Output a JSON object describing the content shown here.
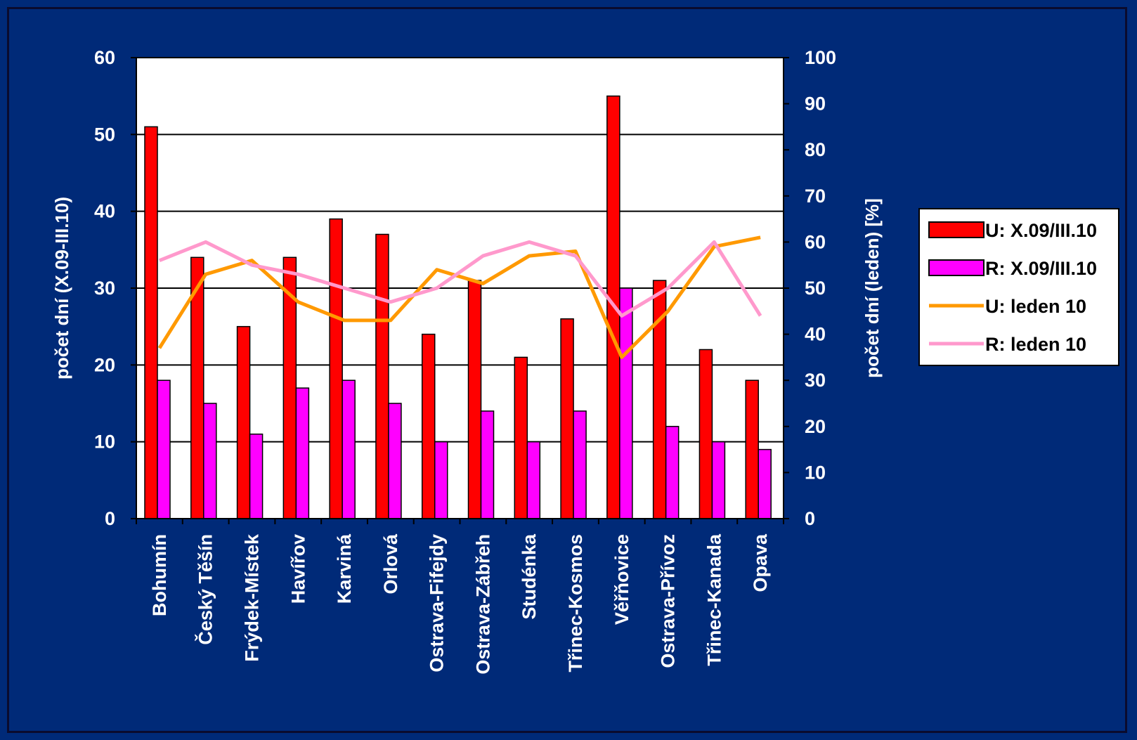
{
  "chart_data": {
    "type": "bar",
    "categories": [
      "Bohumín",
      "Český Těšín",
      "Frýdek-Místek",
      "Havířov",
      "Karviná",
      "Orlová",
      "Ostrava-Fifejdy",
      "Ostrava-Zábřeh",
      "Studénka",
      "Třinec-Kosmos",
      "Věřňovice",
      "Ostrava-Přívoz",
      "Třinec-Kanada",
      "Opava"
    ],
    "ylabel": "počet dní (X.09-III.10)",
    "y2label": "počet dní (leden) [%]",
    "ylim": [
      0,
      60
    ],
    "y2lim": [
      0,
      100
    ],
    "y_ticks": [
      "0",
      "10",
      "20",
      "30",
      "40",
      "50",
      "60"
    ],
    "y2_ticks": [
      "0",
      "10",
      "20",
      "30",
      "40",
      "50",
      "60",
      "70",
      "80",
      "90",
      "100"
    ],
    "grid": true,
    "legend_position": "right",
    "series": [
      {
        "name": "U: X.09/III.10",
        "type": "bar",
        "axis": "left",
        "color": "#ff0000",
        "values": [
          51,
          34,
          25,
          34,
          39,
          37,
          24,
          31,
          21,
          26,
          55,
          31,
          22,
          18
        ]
      },
      {
        "name": "R: X.09/III.10",
        "type": "bar",
        "axis": "left",
        "color": "#ff00ff",
        "values": [
          18,
          15,
          11,
          17,
          18,
          15,
          10,
          14,
          10,
          14,
          30,
          12,
          10,
          9
        ]
      },
      {
        "name": "U: leden 10",
        "type": "line",
        "axis": "right",
        "color": "#ff9900",
        "values": [
          37,
          53,
          56,
          47,
          43,
          43,
          54,
          51,
          57,
          58,
          35,
          45,
          59,
          61
        ]
      },
      {
        "name": "R: leden 10",
        "type": "line",
        "axis": "right",
        "color": "#ff99cc",
        "values": [
          56,
          60,
          55,
          53,
          50,
          47,
          50,
          57,
          60,
          57,
          44,
          50,
          60,
          44
        ]
      }
    ]
  }
}
